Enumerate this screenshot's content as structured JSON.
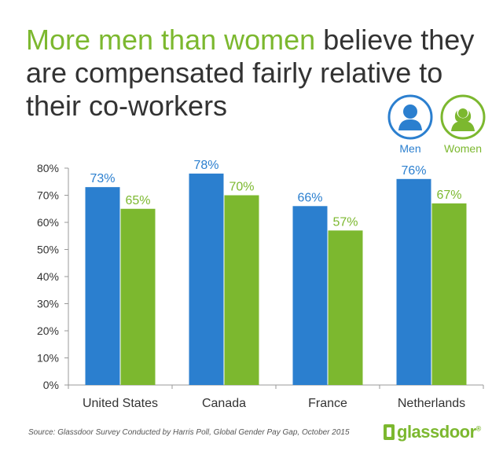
{
  "title": {
    "highlight": "More men than women",
    "rest": " believe they are compensated fairly relative to their co-workers"
  },
  "legend": {
    "men": {
      "label": "Men",
      "icon": "man-icon",
      "color": "#2b7fcf"
    },
    "women": {
      "label": "Women",
      "icon": "woman-icon",
      "color": "#7cb82f"
    }
  },
  "chart_data": {
    "type": "bar",
    "title": "More men than women believe they are compensated fairly relative to their co-workers",
    "categories": [
      "United States",
      "Canada",
      "France",
      "Netherlands"
    ],
    "series": [
      {
        "name": "Men",
        "values": [
          73,
          78,
          66,
          76
        ],
        "labels": [
          "73%",
          "78%",
          "66%",
          "76%"
        ],
        "color": "#2b7fcf"
      },
      {
        "name": "Women",
        "values": [
          65,
          70,
          57,
          67
        ],
        "labels": [
          "65%",
          "70%",
          "57%",
          "67%"
        ],
        "color": "#7cb82f"
      }
    ],
    "ylim": [
      0,
      80
    ],
    "yticks": [
      0,
      10,
      20,
      30,
      40,
      50,
      60,
      70,
      80
    ],
    "ytick_labels": [
      "0%",
      "10%",
      "20%",
      "30%",
      "40%",
      "50%",
      "60%",
      "70%",
      "80%"
    ],
    "xlabel": "",
    "ylabel": "",
    "grid": false,
    "legend_position": "top-right"
  },
  "source": "Source: Glassdoor Survey Conducted by Harris Poll, Global Gender Pay Gap, October 2015",
  "brand": {
    "name": "glassdoor",
    "mark": "®"
  }
}
